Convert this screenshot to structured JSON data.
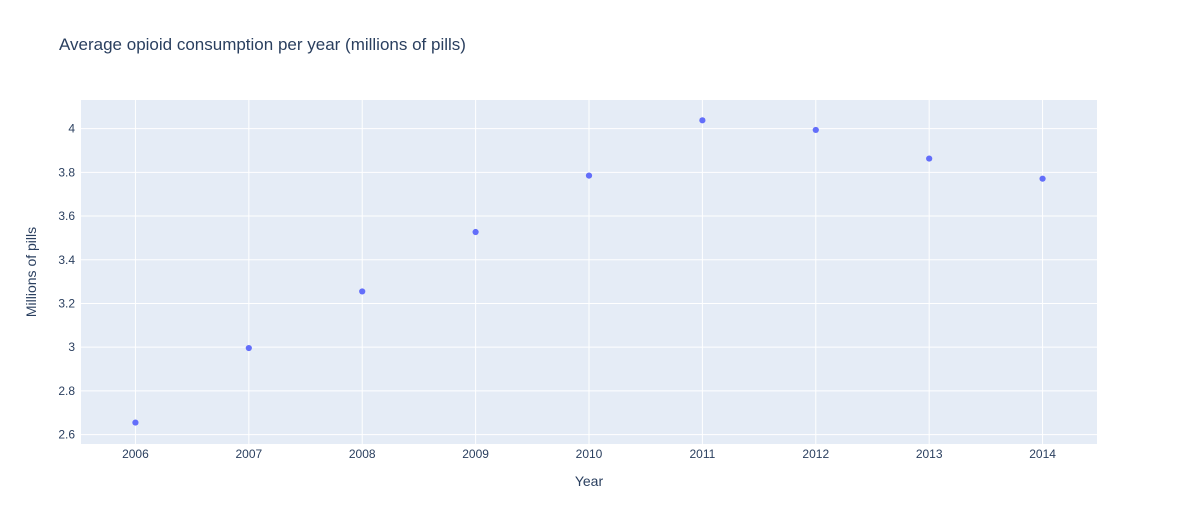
{
  "chart_data": {
    "type": "scatter",
    "title": "Average opioid consumption per year (millions of pills)",
    "xlabel": "Year",
    "ylabel": "Millions of pills",
    "x": [
      2006,
      2007,
      2008,
      2009,
      2010,
      2011,
      2012,
      2013,
      2014
    ],
    "y": [
      2.655,
      2.996,
      3.255,
      3.527,
      3.785,
      4.038,
      3.994,
      3.863,
      3.771
    ],
    "xlim": [
      2005.52,
      2014.48
    ],
    "ylim": [
      2.557,
      4.131
    ],
    "x_ticks": [
      "2006",
      "2007",
      "2008",
      "2009",
      "2010",
      "2011",
      "2012",
      "2013",
      "2014"
    ],
    "y_ticks": [
      "2.6",
      "2.8",
      "3",
      "3.2",
      "3.4",
      "3.6",
      "3.8",
      "4"
    ],
    "grid": true,
    "legend": "none",
    "colors": {
      "marker": "#636efa",
      "plot_background": "#e5ecf6",
      "grid": "#ffffff",
      "text": "#2a3f5f"
    }
  }
}
